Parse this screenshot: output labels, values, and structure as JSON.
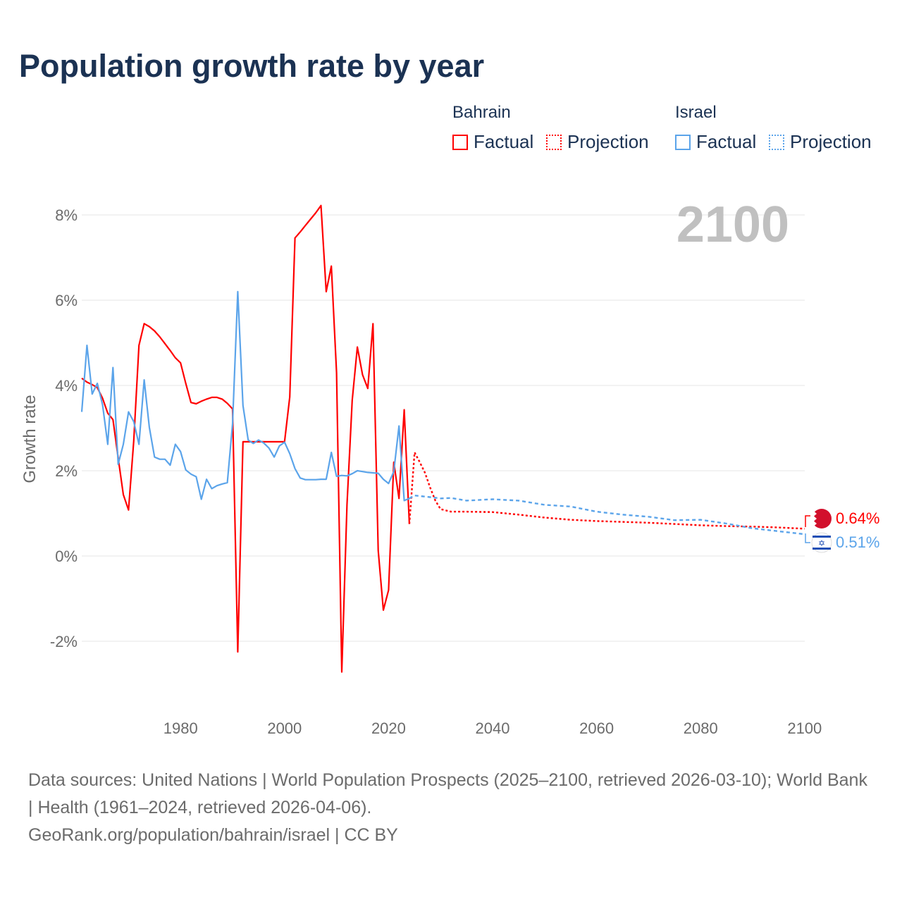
{
  "title": "Population growth rate by year",
  "legend": {
    "groups": [
      {
        "name": "Bahrain",
        "color": "#ff0000",
        "factual": "Factual",
        "projection": "Projection"
      },
      {
        "name": "Israel",
        "color": "#5ba4ea",
        "factual": "Factual",
        "projection": "Projection"
      }
    ]
  },
  "year_watermark": "2100",
  "end_labels": {
    "bahrain": "0.64%",
    "israel": "0.51%"
  },
  "footer": {
    "sources": "Data sources: United Nations | World Population Prospects (2025–2100, retrieved 2026-03-10); World Bank | Health (1961–2024, retrieved 2026-04-06).",
    "credit": "GeoRank.org/population/bahrain/israel | CC BY"
  },
  "chart_data": {
    "type": "line",
    "title": "Population growth rate by year",
    "xlabel": "",
    "ylabel": "Growth rate",
    "xlim": [
      1961,
      2100
    ],
    "ylim": [
      -3.3,
      8.5
    ],
    "xticks": [
      1980,
      2000,
      2020,
      2040,
      2060,
      2080,
      2100
    ],
    "xtick_labels": [
      "1980",
      "2000",
      "2020",
      "2040",
      "2060",
      "2080",
      "2100"
    ],
    "yticks": [
      -2,
      0,
      2,
      4,
      6,
      8
    ],
    "ytick_labels": [
      "-2%",
      "0%",
      "2%",
      "4%",
      "6%",
      "8%"
    ],
    "grid": true,
    "series": [
      {
        "name": "Bahrain Factual",
        "color": "#ff0000",
        "style": "solid",
        "x": [
          1961,
          1962,
          1963,
          1964,
          1965,
          1966,
          1967,
          1968,
          1969,
          1970,
          1971,
          1972,
          1973,
          1974,
          1975,
          1976,
          1977,
          1978,
          1979,
          1980,
          1981,
          1982,
          1983,
          1984,
          1985,
          1986,
          1987,
          1988,
          1989,
          1990,
          1991,
          1992,
          1993,
          1994,
          1995,
          1996,
          1997,
          1998,
          1999,
          2000,
          2001,
          2002,
          2003,
          2004,
          2005,
          2006,
          2007,
          2008,
          2009,
          2010,
          2011,
          2012,
          2013,
          2014,
          2015,
          2016,
          2017,
          2018,
          2019,
          2020,
          2021,
          2022,
          2023,
          2024
        ],
        "y": [
          4.17,
          4.08,
          4.02,
          3.95,
          3.7,
          3.35,
          3.2,
          2.3,
          1.44,
          1.08,
          2.7,
          4.94,
          5.45,
          5.38,
          5.28,
          5.14,
          4.98,
          4.82,
          4.65,
          4.53,
          4.05,
          3.6,
          3.57,
          3.63,
          3.68,
          3.72,
          3.72,
          3.68,
          3.58,
          3.45,
          -2.25,
          2.68,
          2.68,
          2.68,
          2.68,
          2.68,
          2.68,
          2.68,
          2.68,
          2.68,
          3.73,
          7.46,
          7.6,
          7.75,
          7.9,
          8.05,
          8.22,
          6.2,
          6.8,
          4.3,
          -2.72,
          1.2,
          3.65,
          4.9,
          4.25,
          3.93,
          5.45,
          0.13,
          -1.27,
          -0.8,
          2.2,
          1.35,
          3.43,
          0.75
        ]
      },
      {
        "name": "Bahrain Projection",
        "color": "#ff0000",
        "style": "dotted",
        "x": [
          2024,
          2025,
          2026,
          2027,
          2028,
          2029,
          2030,
          2032,
          2035,
          2040,
          2045,
          2050,
          2055,
          2060,
          2065,
          2070,
          2075,
          2080,
          2085,
          2090,
          2095,
          2100
        ],
        "y": [
          0.75,
          2.43,
          2.2,
          1.95,
          1.6,
          1.3,
          1.1,
          1.04,
          1.04,
          1.03,
          0.97,
          0.9,
          0.85,
          0.82,
          0.8,
          0.78,
          0.75,
          0.72,
          0.7,
          0.69,
          0.67,
          0.64
        ]
      },
      {
        "name": "Israel Factual",
        "color": "#5ba4ea",
        "style": "solid",
        "x": [
          1961,
          1962,
          1963,
          1964,
          1965,
          1966,
          1967,
          1968,
          1969,
          1970,
          1971,
          1972,
          1973,
          1974,
          1975,
          1976,
          1977,
          1978,
          1979,
          1980,
          1981,
          1982,
          1983,
          1984,
          1985,
          1986,
          1987,
          1988,
          1989,
          1990,
          1991,
          1992,
          1993,
          1994,
          1995,
          1996,
          1997,
          1998,
          1999,
          2000,
          2001,
          2002,
          2003,
          2004,
          2005,
          2006,
          2007,
          2008,
          2009,
          2010,
          2011,
          2012,
          2013,
          2014,
          2015,
          2016,
          2017,
          2018,
          2019,
          2020,
          2021,
          2022,
          2023,
          2024
        ],
        "y": [
          3.38,
          4.94,
          3.8,
          4.05,
          3.55,
          2.62,
          4.42,
          2.15,
          2.62,
          3.38,
          3.15,
          2.62,
          4.13,
          3.02,
          2.32,
          2.27,
          2.27,
          2.13,
          2.62,
          2.45,
          2.02,
          1.92,
          1.86,
          1.33,
          1.8,
          1.58,
          1.65,
          1.69,
          1.72,
          3.1,
          6.2,
          3.53,
          2.72,
          2.64,
          2.72,
          2.65,
          2.53,
          2.32,
          2.58,
          2.67,
          2.4,
          2.05,
          1.83,
          1.79,
          1.79,
          1.79,
          1.8,
          1.8,
          2.43,
          1.87,
          1.89,
          1.88,
          1.93,
          2.0,
          1.98,
          1.96,
          1.95,
          1.94,
          1.8,
          1.7,
          1.98,
          3.05,
          1.3,
          1.35
        ]
      },
      {
        "name": "Israel Projection",
        "color": "#5ba4ea",
        "style": "dashed",
        "x": [
          2024,
          2025,
          2028,
          2030,
          2032,
          2035,
          2040,
          2045,
          2050,
          2055,
          2060,
          2065,
          2070,
          2075,
          2080,
          2085,
          2090,
          2095,
          2100
        ],
        "y": [
          1.35,
          1.42,
          1.38,
          1.35,
          1.36,
          1.3,
          1.33,
          1.3,
          1.2,
          1.16,
          1.04,
          0.97,
          0.92,
          0.84,
          0.85,
          0.76,
          0.65,
          0.58,
          0.51
        ]
      }
    ]
  }
}
